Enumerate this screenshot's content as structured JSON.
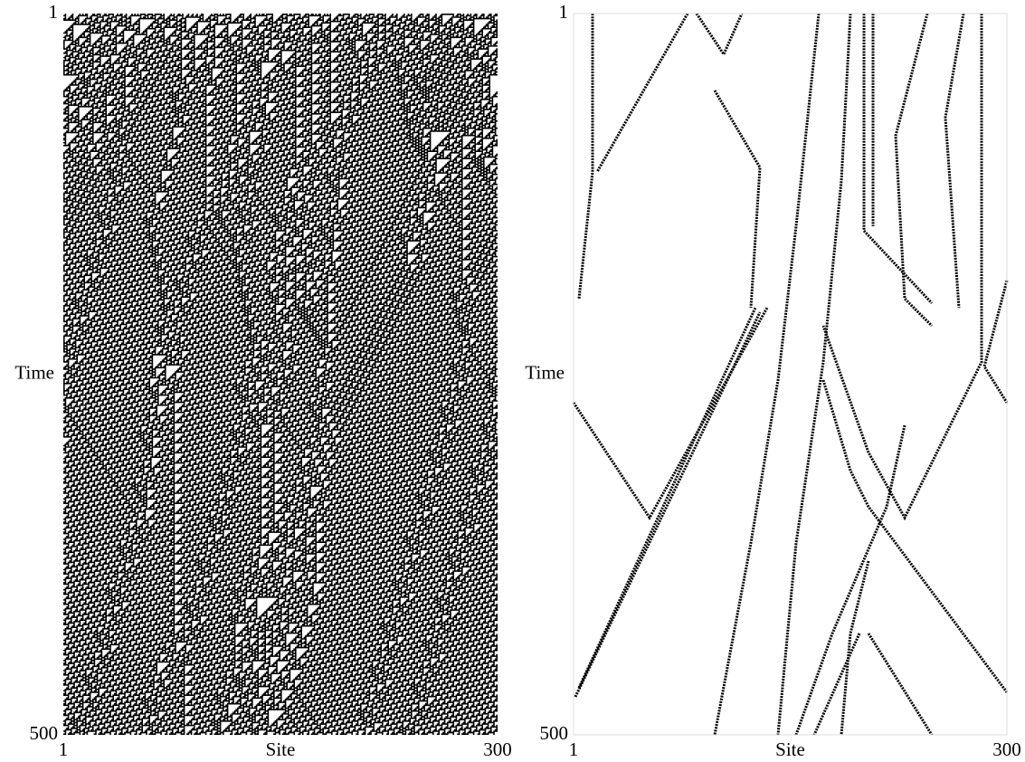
{
  "chart_data": [
    {
      "type": "raster",
      "xlabel": "Site",
      "ylabel": "Time",
      "xlim": [
        1,
        300
      ],
      "ylim": [
        1,
        500
      ],
      "xticks": [
        1,
        300
      ],
      "yticks": [
        1,
        500
      ]
    },
    {
      "type": "raster",
      "xlabel": "Site",
      "ylabel": "Time",
      "xlim": [
        1,
        300
      ],
      "ylim": [
        1,
        500
      ],
      "xticks": [
        1,
        300
      ],
      "yticks": [
        1,
        500
      ]
    }
  ]
}
